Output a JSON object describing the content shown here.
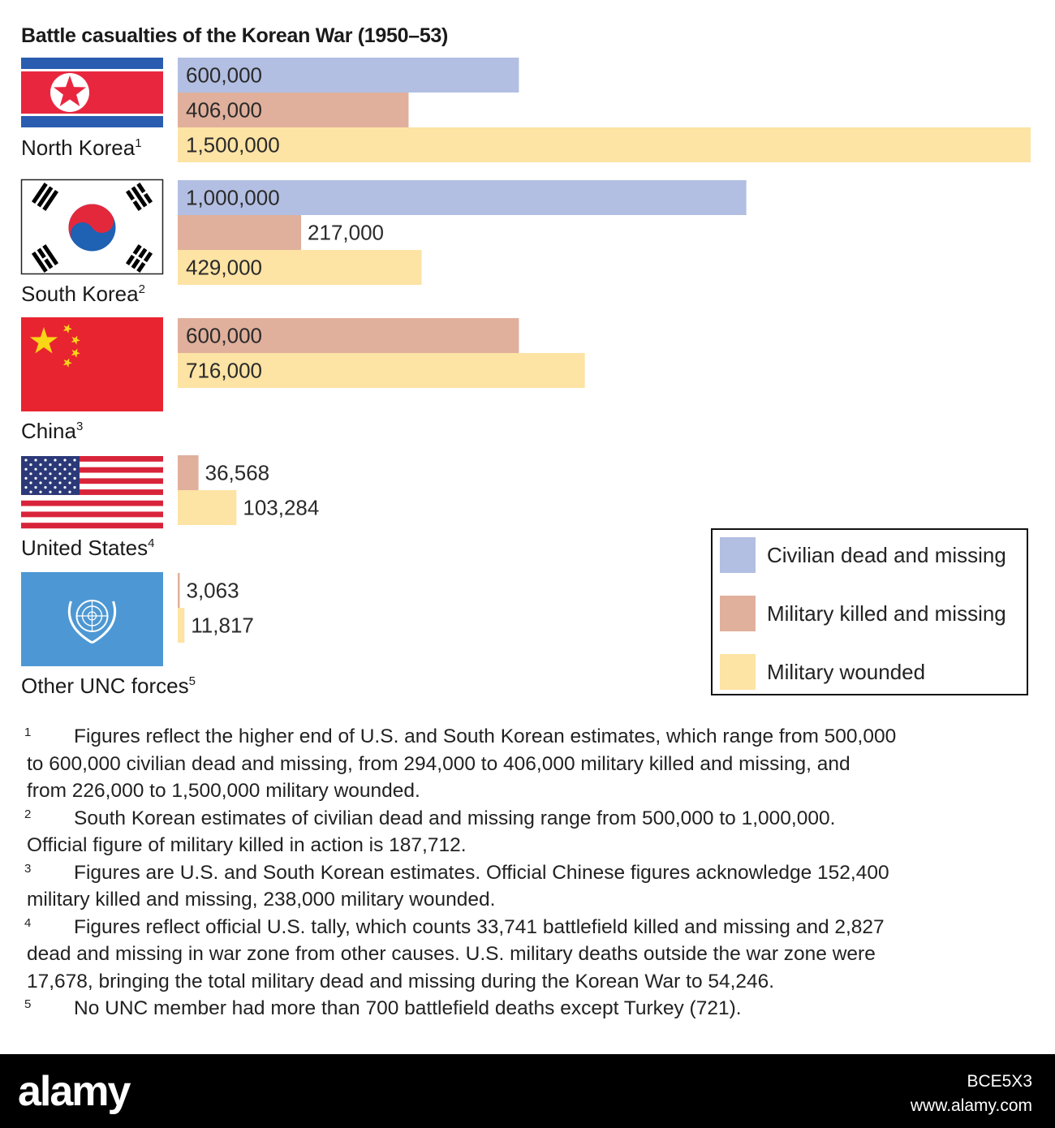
{
  "chart_data": {
    "type": "bar",
    "orientation": "horizontal",
    "title": "Battle casualties of the Korean War (1950–53)",
    "colors": {
      "civilian": "#b2bfe2",
      "military_killed": "#e0b09c",
      "military_wounded": "#fde3a4"
    },
    "legend": {
      "position": "right",
      "entries": [
        {
          "key": "civilian",
          "label": "Civilian dead and missing"
        },
        {
          "key": "military_killed",
          "label": "Military killed and missing"
        },
        {
          "key": "military_wounded",
          "label": "Military wounded"
        }
      ]
    },
    "xlim": [
      0,
      1500000
    ],
    "grid": false,
    "groups": [
      {
        "name": "North Korea",
        "note": "1",
        "flag": "north-korea-flag-icon",
        "bars": [
          {
            "series": "civilian",
            "value": 600000,
            "label": "600,000"
          },
          {
            "series": "military_killed",
            "value": 406000,
            "label": "406,000"
          },
          {
            "series": "military_wounded",
            "value": 1500000,
            "label": "1,500,000"
          }
        ]
      },
      {
        "name": "South Korea",
        "note": "2",
        "flag": "south-korea-flag-icon",
        "bars": [
          {
            "series": "civilian",
            "value": 1000000,
            "label": "1,000,000"
          },
          {
            "series": "military_killed",
            "value": 217000,
            "label": "217,000"
          },
          {
            "series": "military_wounded",
            "value": 429000,
            "label": "429,000"
          }
        ]
      },
      {
        "name": "China",
        "note": "3",
        "flag": "china-flag-icon",
        "bars": [
          {
            "series": "military_killed",
            "value": 600000,
            "label": "600,000"
          },
          {
            "series": "military_wounded",
            "value": 716000,
            "label": "716,000"
          }
        ]
      },
      {
        "name": "United States",
        "note": "4",
        "flag": "united-states-flag-icon",
        "bars": [
          {
            "series": "military_killed",
            "value": 36568,
            "label": "36,568"
          },
          {
            "series": "military_wounded",
            "value": 103284,
            "label": "103,284"
          }
        ]
      },
      {
        "name": "Other UNC forces",
        "note": "5",
        "flag": "united-nations-flag-icon",
        "bars": [
          {
            "series": "military_killed",
            "value": 3063,
            "label": "3,063"
          },
          {
            "series": "military_wounded",
            "value": 11817,
            "label": "11,817"
          }
        ]
      }
    ],
    "footnotes": [
      {
        "num": "1",
        "lines": [
          "Figures reflect the higher end of U.S. and South Korean estimates, which range from 500,000",
          "to 600,000 civilian dead and missing, from 294,000 to 406,000 military killed and missing, and",
          "from 226,000 to 1,500,000 military wounded."
        ]
      },
      {
        "num": "2",
        "lines": [
          "South Korean estimates of civilian dead and missing range from 500,000 to 1,000,000.",
          "Official figure of military killed in action is 187,712."
        ]
      },
      {
        "num": "3",
        "lines": [
          "Figures are U.S. and South Korean estimates. Official Chinese figures acknowledge 152,400",
          "military killed and missing, 238,000 military wounded."
        ]
      },
      {
        "num": "4",
        "lines": [
          "Figures reflect official U.S. tally, which counts 33,741 battlefield killed and missing and 2,827",
          "dead and missing in war zone from other causes. U.S. military deaths outside the war zone were",
          "17,678, bringing the total military dead and missing during the Korean War to 54,246."
        ]
      },
      {
        "num": "5",
        "lines": [
          "No UNC member had more than 700 battlefield deaths except Turkey (721)."
        ]
      }
    ]
  },
  "footer": {
    "brand": "alamy",
    "image_id": "BCE5X3",
    "site": "www.alamy.com"
  }
}
